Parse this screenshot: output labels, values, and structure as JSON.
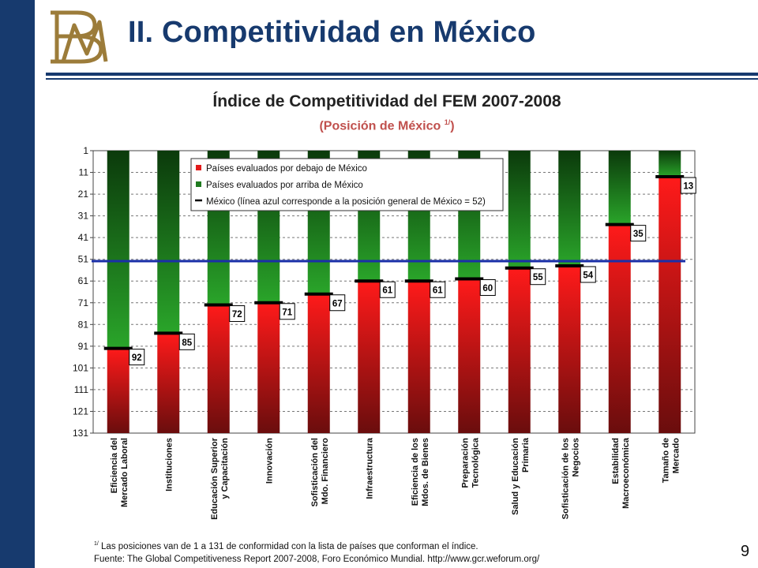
{
  "slide": {
    "title": "II. Competitividad en México",
    "page_number": "9",
    "logo_letters": "BM",
    "colors": {
      "brand_blue": "#173a6e",
      "subtitle_red": "#c0504d",
      "logo_gold": "#9c7c3a"
    }
  },
  "chart_data": {
    "type": "bar",
    "title": "Índice de Competitividad del FEM 2007-2008",
    "subtitle": "(Posición de México",
    "subtitle_sup": "1/",
    "subtitle_end": ")",
    "categories": [
      [
        "Eficiencia del",
        "Mercado Laboral"
      ],
      [
        "Instituciones"
      ],
      [
        "Educación Superior",
        "y Capacitación"
      ],
      [
        "Innovación"
      ],
      [
        "Sofisticación del",
        "Mdo. Financiero"
      ],
      [
        "Infraestructura"
      ],
      [
        "Eficiencia de los",
        "Mdos. de Bienes"
      ],
      [
        "Preparación",
        "Tecnológica"
      ],
      [
        "Salud y Educación",
        "Primaria"
      ],
      [
        "Sofisticación de los",
        "Negocios"
      ],
      [
        "Estabilidad",
        "Macroeconómica"
      ],
      [
        "Tamaño de",
        "Mercado"
      ]
    ],
    "values": [
      92,
      85,
      72,
      71,
      67,
      61,
      61,
      60,
      55,
      54,
      35,
      13
    ],
    "ylim": [
      1,
      131
    ],
    "y_ticks": [
      1,
      11,
      21,
      31,
      41,
      51,
      61,
      71,
      81,
      91,
      101,
      111,
      121,
      131
    ],
    "y_axis_reversed": true,
    "overall_position": 52,
    "grid": true,
    "series_colors": {
      "above": "#1f7a1f",
      "below": "#e31b1b",
      "overall_line": "#1a2fa8"
    },
    "legend": {
      "position": "top",
      "items": [
        "Países evaluados por debajo de México",
        "Países evaluados por arriba de México",
        "México (línea azul corresponde a la posición general de México = 52)"
      ]
    }
  },
  "footnote": {
    "sup": "1/",
    "line1": " Las posiciones van de 1 a 131 de conformidad con la lista de países que conforman el índice.",
    "line2": "Fuente: The Global Competitiveness Report 2007-2008,  Foro Económico Mundial. http://www.gcr.weforum.org/"
  }
}
